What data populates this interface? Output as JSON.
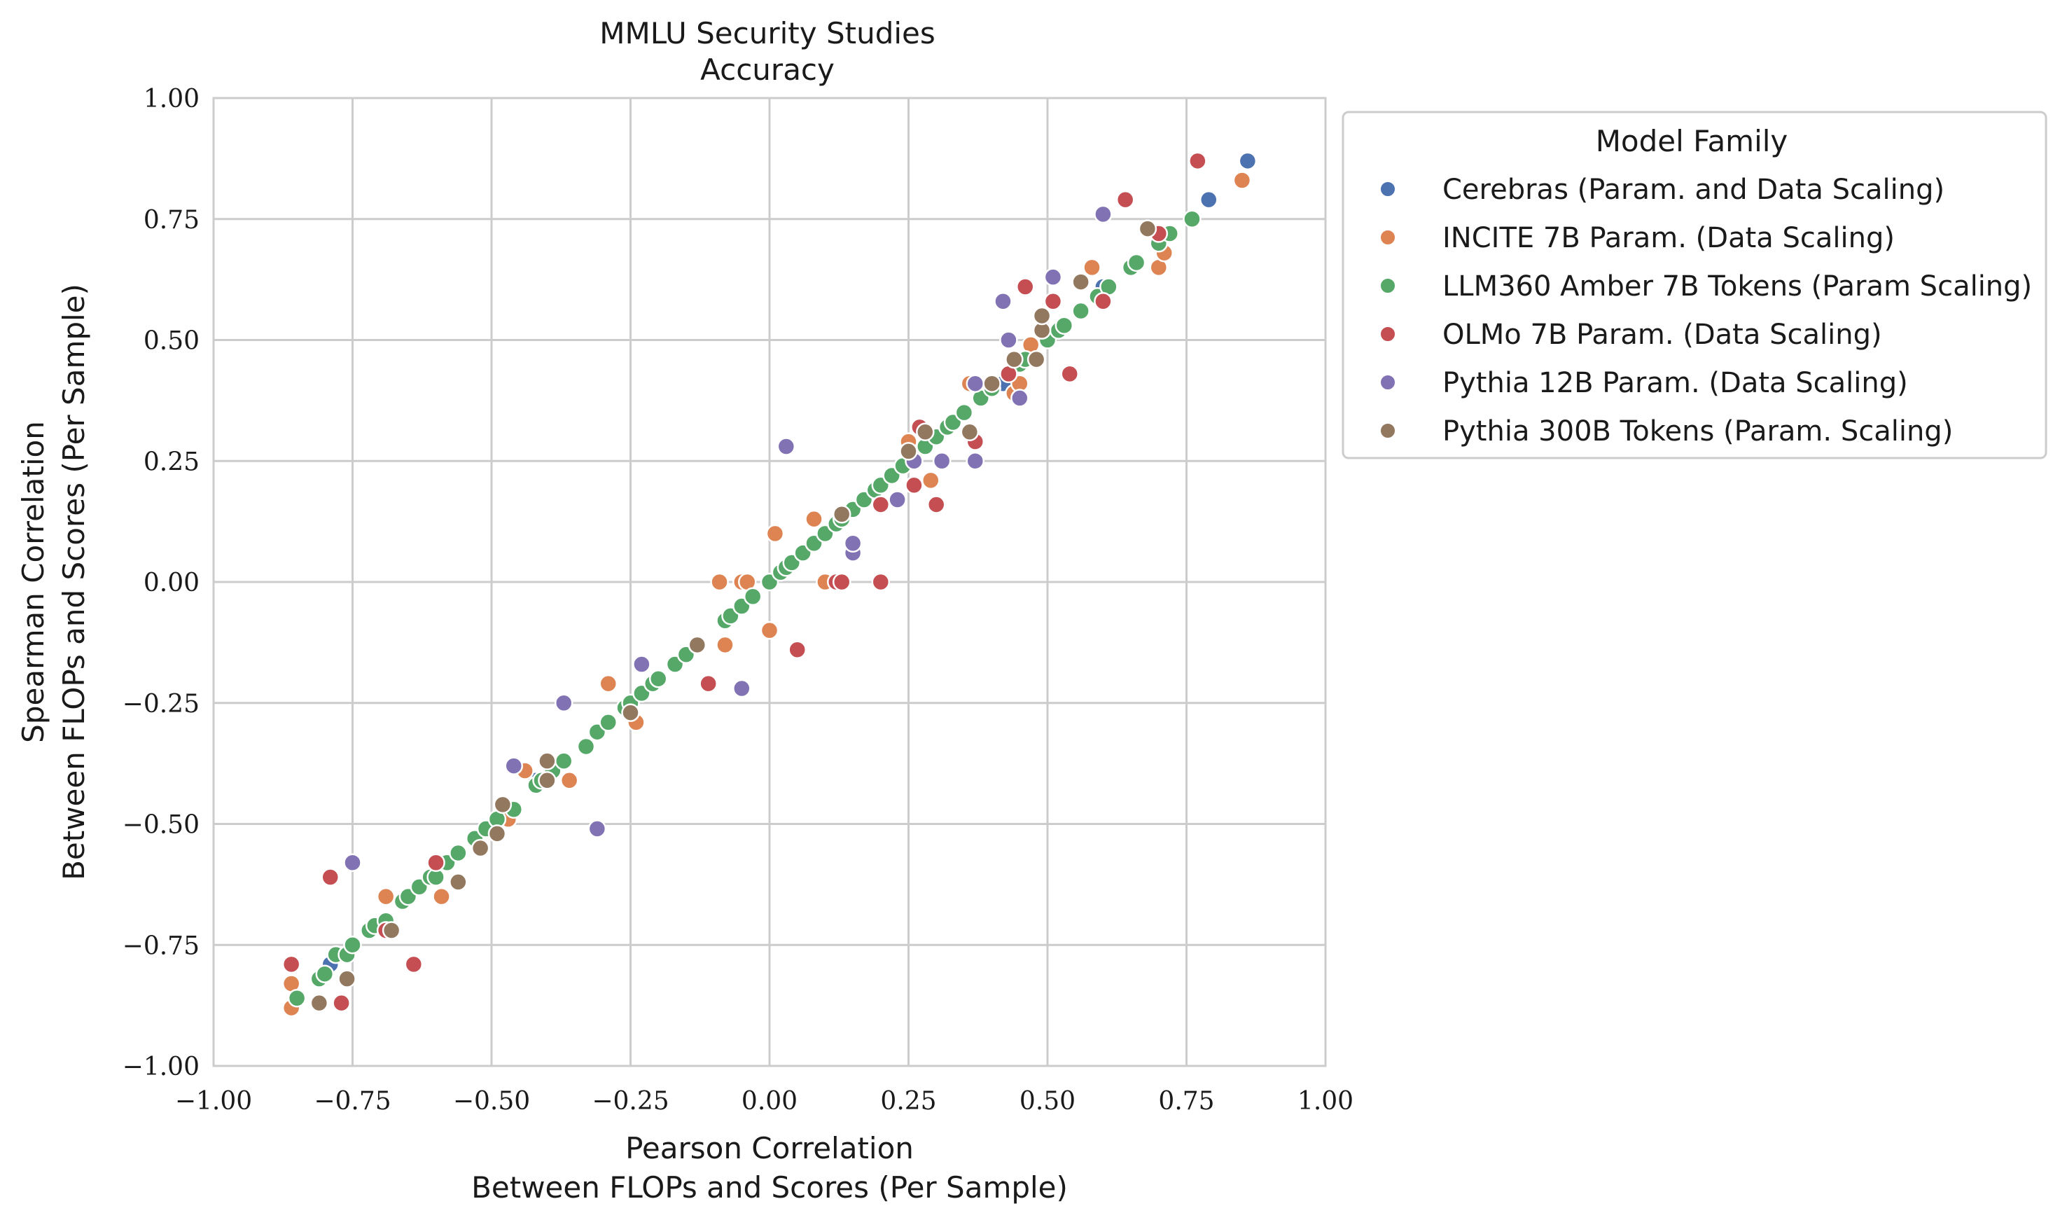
{
  "chart_data": {
    "type": "scatter",
    "title": [
      "MMLU Security Studies",
      "Accuracy"
    ],
    "xlabel": [
      "Pearson Correlation",
      "Between FLOPs and Scores (Per Sample)"
    ],
    "ylabel": [
      "Spearman Correlation",
      "Between FLOPs and Scores (Per Sample)"
    ],
    "xlim": [
      -1.0,
      1.0
    ],
    "ylim": [
      -1.0,
      1.0
    ],
    "xticks": [
      "−1.00",
      "−0.75",
      "−0.50",
      "−0.25",
      "0.00",
      "0.25",
      "0.50",
      "0.75",
      "1.00"
    ],
    "yticks": [
      "−1.00",
      "−0.75",
      "−0.50",
      "−0.25",
      "0.00",
      "0.25",
      "0.50",
      "0.75",
      "1.00"
    ],
    "grid": true,
    "legend": {
      "title": "Model Family",
      "placement": "outside-top-right"
    },
    "series": [
      {
        "name": "Cerebras (Param. and Data Scaling)",
        "color": "#4c72b0",
        "points": [
          [
            0.86,
            0.87
          ],
          [
            0.79,
            0.79
          ],
          [
            0.6,
            0.61
          ],
          [
            -0.79,
            -0.79
          ],
          [
            -0.42,
            -0.41
          ],
          [
            0.42,
            0.41
          ],
          [
            0.25,
            0.27
          ]
        ]
      },
      {
        "name": "INCITE 7B Param. (Data Scaling)",
        "color": "#dd8452",
        "points": [
          [
            -0.86,
            -0.88
          ],
          [
            -0.86,
            -0.83
          ],
          [
            -0.69,
            -0.65
          ],
          [
            -0.59,
            -0.65
          ],
          [
            -0.47,
            -0.49
          ],
          [
            -0.44,
            -0.39
          ],
          [
            -0.36,
            -0.41
          ],
          [
            -0.29,
            -0.21
          ],
          [
            -0.24,
            -0.29
          ],
          [
            -0.09,
            0.0
          ],
          [
            -0.08,
            -0.13
          ],
          [
            -0.05,
            0.0
          ],
          [
            -0.04,
            0.0
          ],
          [
            0.0,
            -0.1
          ],
          [
            0.01,
            0.1
          ],
          [
            0.08,
            0.13
          ],
          [
            0.1,
            0.0
          ],
          [
            0.25,
            0.29
          ],
          [
            0.29,
            0.21
          ],
          [
            0.36,
            0.41
          ],
          [
            0.44,
            0.39
          ],
          [
            0.45,
            0.41
          ],
          [
            0.47,
            0.49
          ],
          [
            0.58,
            0.65
          ],
          [
            0.7,
            0.65
          ],
          [
            0.71,
            0.68
          ],
          [
            0.85,
            0.83
          ]
        ]
      },
      {
        "name": "LLM360 Amber 7B Tokens (Param Scaling)",
        "color": "#55a868",
        "points": [
          [
            -0.85,
            -0.86
          ],
          [
            -0.81,
            -0.82
          ],
          [
            -0.8,
            -0.81
          ],
          [
            -0.78,
            -0.77
          ],
          [
            -0.76,
            -0.77
          ],
          [
            -0.75,
            -0.75
          ],
          [
            -0.72,
            -0.72
          ],
          [
            -0.71,
            -0.71
          ],
          [
            -0.69,
            -0.7
          ],
          [
            -0.66,
            -0.66
          ],
          [
            -0.65,
            -0.65
          ],
          [
            -0.63,
            -0.63
          ],
          [
            -0.61,
            -0.61
          ],
          [
            -0.6,
            -0.61
          ],
          [
            -0.58,
            -0.58
          ],
          [
            -0.56,
            -0.56
          ],
          [
            -0.53,
            -0.53
          ],
          [
            -0.51,
            -0.51
          ],
          [
            -0.49,
            -0.49
          ],
          [
            -0.46,
            -0.47
          ],
          [
            -0.42,
            -0.42
          ],
          [
            -0.41,
            -0.41
          ],
          [
            -0.39,
            -0.39
          ],
          [
            -0.37,
            -0.37
          ],
          [
            -0.33,
            -0.34
          ],
          [
            -0.31,
            -0.31
          ],
          [
            -0.29,
            -0.29
          ],
          [
            -0.26,
            -0.26
          ],
          [
            -0.25,
            -0.25
          ],
          [
            -0.23,
            -0.23
          ],
          [
            -0.21,
            -0.21
          ],
          [
            -0.2,
            -0.2
          ],
          [
            -0.17,
            -0.17
          ],
          [
            -0.15,
            -0.15
          ],
          [
            -0.13,
            -0.13
          ],
          [
            -0.08,
            -0.08
          ],
          [
            -0.07,
            -0.07
          ],
          [
            -0.05,
            -0.05
          ],
          [
            -0.03,
            -0.03
          ],
          [
            0.0,
            0.0
          ],
          [
            0.02,
            0.02
          ],
          [
            0.03,
            0.03
          ],
          [
            0.04,
            0.04
          ],
          [
            0.06,
            0.06
          ],
          [
            0.08,
            0.08
          ],
          [
            0.1,
            0.1
          ],
          [
            0.12,
            0.12
          ],
          [
            0.13,
            0.13
          ],
          [
            0.15,
            0.15
          ],
          [
            0.17,
            0.17
          ],
          [
            0.19,
            0.19
          ],
          [
            0.2,
            0.2
          ],
          [
            0.22,
            0.22
          ],
          [
            0.24,
            0.24
          ],
          [
            0.26,
            0.26
          ],
          [
            0.28,
            0.28
          ],
          [
            0.3,
            0.3
          ],
          [
            0.32,
            0.32
          ],
          [
            0.33,
            0.33
          ],
          [
            0.35,
            0.35
          ],
          [
            0.38,
            0.38
          ],
          [
            0.4,
            0.4
          ],
          [
            0.45,
            0.45
          ],
          [
            0.46,
            0.46
          ],
          [
            0.5,
            0.5
          ],
          [
            0.52,
            0.52
          ],
          [
            0.53,
            0.53
          ],
          [
            0.56,
            0.56
          ],
          [
            0.59,
            0.59
          ],
          [
            0.61,
            0.61
          ],
          [
            0.65,
            0.65
          ],
          [
            0.66,
            0.66
          ],
          [
            0.7,
            0.7
          ],
          [
            0.72,
            0.72
          ],
          [
            0.76,
            0.75
          ]
        ]
      },
      {
        "name": "OLMo 7B Param. (Data Scaling)",
        "color": "#c44e52",
        "points": [
          [
            -0.86,
            -0.79
          ],
          [
            -0.79,
            -0.61
          ],
          [
            -0.77,
            -0.87
          ],
          [
            -0.69,
            -0.72
          ],
          [
            -0.64,
            -0.79
          ],
          [
            -0.6,
            -0.58
          ],
          [
            -0.11,
            -0.21
          ],
          [
            0.05,
            -0.14
          ],
          [
            0.12,
            0.0
          ],
          [
            0.13,
            0.0
          ],
          [
            0.2,
            0.0
          ],
          [
            0.2,
            0.16
          ],
          [
            0.26,
            0.2
          ],
          [
            0.27,
            0.32
          ],
          [
            0.3,
            0.16
          ],
          [
            0.37,
            0.29
          ],
          [
            0.43,
            0.43
          ],
          [
            0.46,
            0.61
          ],
          [
            0.51,
            0.58
          ],
          [
            0.54,
            0.43
          ],
          [
            0.6,
            0.58
          ],
          [
            0.64,
            0.79
          ],
          [
            0.7,
            0.72
          ],
          [
            0.77,
            0.87
          ]
        ]
      },
      {
        "name": "Pythia 12B Param. (Data Scaling)",
        "color": "#8172b3",
        "points": [
          [
            -0.75,
            -0.58
          ],
          [
            -0.46,
            -0.38
          ],
          [
            -0.37,
            -0.25
          ],
          [
            -0.31,
            -0.51
          ],
          [
            -0.23,
            -0.17
          ],
          [
            -0.05,
            -0.22
          ],
          [
            0.03,
            0.28
          ],
          [
            0.15,
            0.06
          ],
          [
            0.15,
            0.08
          ],
          [
            0.23,
            0.17
          ],
          [
            0.26,
            0.25
          ],
          [
            0.31,
            0.25
          ],
          [
            0.37,
            0.41
          ],
          [
            0.37,
            0.25
          ],
          [
            0.42,
            0.58
          ],
          [
            0.43,
            0.5
          ],
          [
            0.45,
            0.38
          ],
          [
            0.51,
            0.63
          ],
          [
            0.6,
            0.76
          ]
        ]
      },
      {
        "name": "Pythia 300B Tokens (Param. Scaling)",
        "color": "#937860",
        "points": [
          [
            -0.81,
            -0.87
          ],
          [
            -0.76,
            -0.82
          ],
          [
            -0.68,
            -0.72
          ],
          [
            -0.56,
            -0.62
          ],
          [
            -0.52,
            -0.55
          ],
          [
            -0.49,
            -0.52
          ],
          [
            -0.48,
            -0.46
          ],
          [
            -0.4,
            -0.37
          ],
          [
            -0.4,
            -0.41
          ],
          [
            -0.25,
            -0.27
          ],
          [
            -0.13,
            -0.13
          ],
          [
            0.13,
            0.14
          ],
          [
            0.25,
            0.27
          ],
          [
            0.28,
            0.31
          ],
          [
            0.36,
            0.31
          ],
          [
            0.4,
            0.41
          ],
          [
            0.44,
            0.46
          ],
          [
            0.48,
            0.46
          ],
          [
            0.49,
            0.52
          ],
          [
            0.49,
            0.55
          ],
          [
            0.56,
            0.62
          ],
          [
            0.68,
            0.73
          ]
        ]
      }
    ]
  }
}
